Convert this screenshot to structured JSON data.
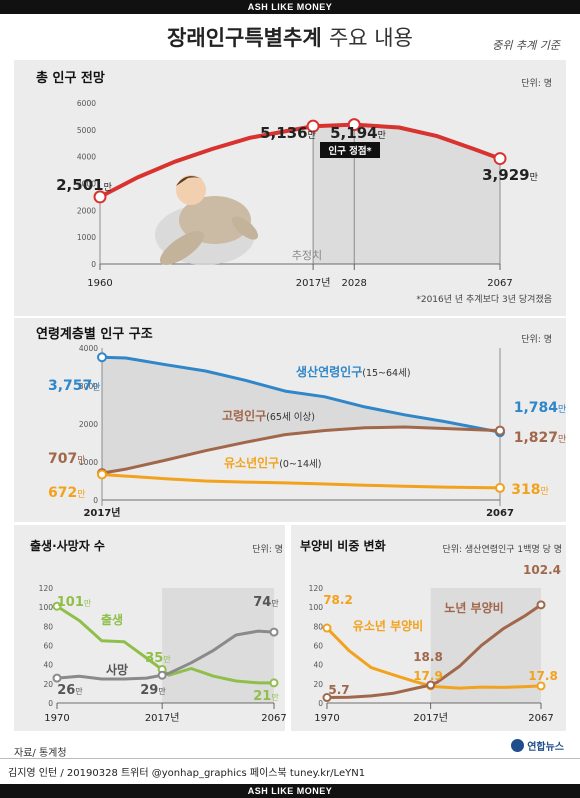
{
  "watermark_top": "ASH LIKE MONEY",
  "watermark_bottom": "ASH LIKE MONEY",
  "title_main": "장래인구특별추계",
  "title_sub": "주요 내용",
  "basis_note": "중위 추계 기준",
  "source": "자료/ 통계청",
  "logo_text": "연합뉴스",
  "credit": "김지영 인턴 / 20190328 트위터 @yonhap_graphics  페이스북 tuney.kr/LeYN1",
  "colors": {
    "red": "#d8332f",
    "blue": "#2f86c9",
    "brown": "#a0674a",
    "orange": "#f2a21c",
    "green": "#8fbf4a",
    "gray": "#8a8a8a"
  },
  "chart_data": [
    {
      "id": "total",
      "type": "line",
      "title": "총 인구 전망",
      "unit": "단위: 명",
      "x": [
        1960,
        1970,
        1980,
        1990,
        2000,
        2010,
        2017,
        2028,
        2040,
        2050,
        2060,
        2067
      ],
      "values": [
        2501,
        3224,
        3812,
        4287,
        4701,
        4955,
        5136,
        5194,
        5086,
        4774,
        4284,
        3929
      ],
      "ylim": [
        0,
        6000
      ],
      "yticks": [
        0,
        1000,
        2000,
        3000,
        4000,
        5000,
        6000
      ],
      "xtick_labels": [
        "1960",
        "2017년",
        "2028",
        "2067"
      ],
      "labels": [
        {
          "num": "2,501",
          "suffix": "만"
        },
        {
          "num": "5,136",
          "suffix": "만"
        },
        {
          "num": "5,194",
          "suffix": "만"
        },
        {
          "num": "3,929",
          "suffix": "만"
        }
      ],
      "peak_label": "인구 정점*",
      "projection_label": "추정치",
      "footnote": "*2016년 년 추계보다 3년 당겨졌음"
    },
    {
      "id": "age",
      "type": "line",
      "title": "연령계층별 인구 구조",
      "unit": "단위: 명",
      "x": [
        2017,
        2020,
        2025,
        2030,
        2035,
        2040,
        2045,
        2050,
        2055,
        2060,
        2067
      ],
      "ylim": [
        0,
        4000
      ],
      "yticks": [
        0,
        1000,
        2000,
        3000,
        4000
      ],
      "xtick_labels": [
        "2017년",
        "2067"
      ],
      "series": [
        {
          "name": "생산연령인구",
          "range": "(15~64세)",
          "values": [
            3757,
            3736,
            3560,
            3395,
            3150,
            2865,
            2717,
            2449,
            2243,
            2066,
            1784
          ],
          "start": {
            "num": "3,757",
            "suffix": "만"
          },
          "end": {
            "num": "1,784",
            "suffix": "만"
          }
        },
        {
          "name": "고령인구",
          "range": "(65세 이상)",
          "values": [
            707,
            813,
            1051,
            1298,
            1519,
            1722,
            1829,
            1901,
            1921,
            1881,
            1827
          ],
          "start": {
            "num": "707",
            "suffix": "만"
          },
          "end": {
            "num": "1,827",
            "suffix": "만"
          }
        },
        {
          "name": "유소년인구",
          "range": "(0~14세)",
          "values": [
            672,
            630,
            560,
            500,
            470,
            450,
            420,
            390,
            360,
            340,
            318
          ],
          "start": {
            "num": "672",
            "suffix": "만"
          },
          "end": {
            "num": "318",
            "suffix": "만"
          }
        }
      ]
    },
    {
      "id": "births",
      "type": "line",
      "title": "출생·사망자 수",
      "unit": "단위: 명",
      "x": [
        1970,
        1980,
        1990,
        2000,
        2010,
        2017,
        2020,
        2030,
        2040,
        2050,
        2060,
        2067
      ],
      "ylim": [
        0,
        120
      ],
      "yticks": [
        0,
        20,
        40,
        60,
        80,
        100,
        120
      ],
      "xtick_labels": [
        "1970",
        "2017년",
        "2067"
      ],
      "series": [
        {
          "name": "출생",
          "values": [
            101,
            86,
            65,
            64,
            47,
            35,
            29,
            36,
            28,
            23,
            21,
            21
          ],
          "start": {
            "num": "101",
            "suffix": "만"
          },
          "mid": {
            "num": "35",
            "suffix": "만"
          },
          "end": {
            "num": "21",
            "suffix": "만"
          }
        },
        {
          "name": "사망",
          "values": [
            26,
            28,
            25,
            25,
            26,
            29,
            31,
            42,
            55,
            71,
            75,
            74
          ],
          "start": {
            "num": "26",
            "suffix": "만"
          },
          "mid": {
            "num": "29",
            "suffix": "만"
          },
          "end": {
            "num": "74",
            "suffix": "만"
          }
        }
      ]
    },
    {
      "id": "dependency",
      "type": "line",
      "title": "부양비 비중 변화",
      "unit": "단위: 생산연령인구 1백명 당 명",
      "x": [
        1970,
        1980,
        1990,
        2000,
        2010,
        2017,
        2020,
        2030,
        2040,
        2050,
        2060,
        2067
      ],
      "ylim": [
        0,
        120
      ],
      "yticks": [
        0,
        20,
        40,
        60,
        80,
        100,
        120
      ],
      "xtick_labels": [
        "1970",
        "2017년",
        "2067"
      ],
      "series": [
        {
          "name": "유소년 부양비",
          "values": [
            78.2,
            54.6,
            36.9,
            29.4,
            22.2,
            17.9,
            16.9,
            15.5,
            16.6,
            16.3,
            17.1,
            17.8
          ],
          "start": "78.2",
          "mid": "17.9",
          "end": "17.8"
        },
        {
          "name": "노년 부양비",
          "values": [
            5.7,
            6.1,
            7.4,
            10.1,
            15.2,
            18.8,
            21.7,
            38.2,
            60.1,
            77.6,
            91.4,
            102.4
          ],
          "start": "5.7",
          "mid": "18.8",
          "end": "102.4"
        }
      ]
    }
  ]
}
